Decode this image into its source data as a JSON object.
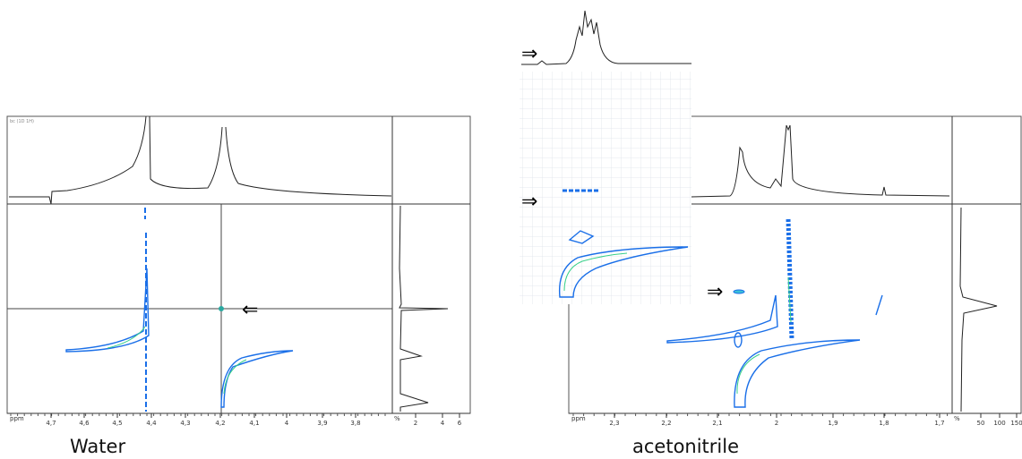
{
  "panels": [
    {
      "caption": "Water",
      "label": "bc (1D 1H)",
      "x_axis": {
        "unit": "ppm",
        "ticks": [
          "4,7",
          "4,6",
          "4,5",
          "4,4",
          "4,3",
          "4,2",
          "4,1",
          "4",
          "3,9",
          "3,8"
        ]
      },
      "side_axis": {
        "unit": "%",
        "ticks": [
          "2",
          "4",
          "6"
        ]
      },
      "arrows": [
        "⇐"
      ]
    },
    {
      "caption": "acetonitrile",
      "x_axis": {
        "unit": "ppm",
        "ticks": [
          "2,3",
          "2,2",
          "2,1",
          "2",
          "1,9",
          "1,8",
          "1,7"
        ]
      },
      "side_axis": {
        "unit": "%",
        "ticks": [
          "50",
          "100",
          "150"
        ]
      },
      "arrows": [
        "⇒",
        "⇒",
        "⇒"
      ]
    }
  ]
}
